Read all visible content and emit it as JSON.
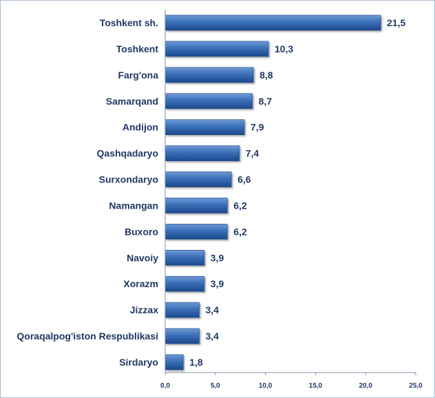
{
  "chart_data": {
    "type": "bar",
    "orientation": "horizontal",
    "categories": [
      "Toshkent sh.",
      "Toshkent",
      "Farg'ona",
      "Samarqand",
      "Andijon",
      "Qashqadaryo",
      "Surxondaryo",
      "Namangan",
      "Buxoro",
      "Navoiy",
      "Xorazm",
      "Jizzax",
      "Qoraqalpog'iston Respublikasi",
      "Sirdaryo"
    ],
    "values": [
      21.5,
      10.3,
      8.8,
      8.7,
      7.9,
      7.4,
      6.6,
      6.2,
      6.2,
      3.9,
      3.9,
      3.4,
      3.4,
      1.8
    ],
    "value_labels": [
      "21,5",
      "10,3",
      "8,8",
      "8,7",
      "7,9",
      "7,4",
      "6,6",
      "6,2",
      "6,2",
      "3,9",
      "3,9",
      "3,4",
      "3,4",
      "1,8"
    ],
    "xlim": [
      0,
      25
    ],
    "xticks": [
      0,
      5,
      10,
      15,
      20,
      25
    ],
    "xtick_labels": [
      "0,0",
      "5,0",
      "10,0",
      "15,0",
      "20,0",
      "25,0"
    ],
    "title": "",
    "xlabel": "",
    "ylabel": "",
    "grid": false,
    "legend": "none",
    "bar_color": "#2e62a8",
    "text_color": "#1f3864"
  }
}
